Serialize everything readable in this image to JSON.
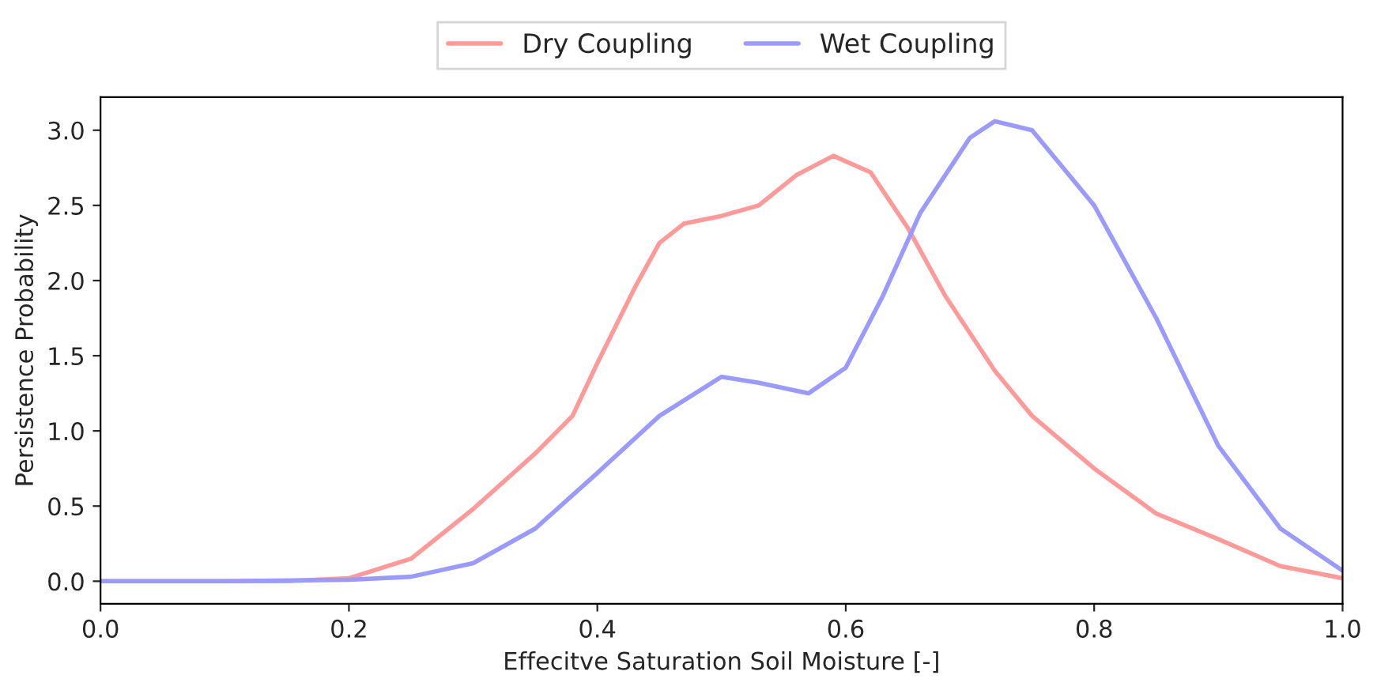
{
  "chart_data": {
    "type": "line",
    "xlabel": "Effecitve Saturation Soil Moisture [-]",
    "ylabel": "Persistence Probability",
    "xlim": [
      0,
      1.0
    ],
    "ylim": [
      -0.15,
      3.22
    ],
    "xticks": [
      {
        "value": 0,
        "label": "0.0"
      },
      0.2,
      0.4,
      0.6,
      0.8,
      {
        "value": 1.0,
        "label": "1.0"
      }
    ],
    "yticks": [
      {
        "value": 0,
        "label": "0.0"
      },
      0.5,
      {
        "value": 1.0,
        "label": "1.0"
      },
      1.5,
      {
        "value": 2.0,
        "label": "2.0"
      },
      2.5,
      {
        "value": 3.0,
        "label": "3.0"
      }
    ],
    "legend": "top",
    "grid": false,
    "marker": "none",
    "line_style": "solid",
    "series": [
      {
        "name": "Dry Coupling",
        "color": "#ff9a9a",
        "x": [
          0,
          0.1,
          0.15,
          0.2,
          0.25,
          0.3,
          0.35,
          0.38,
          0.4,
          0.43,
          0.45,
          0.47,
          0.5,
          0.53,
          0.56,
          0.59,
          0.62,
          0.65,
          0.68,
          0.72,
          0.75,
          0.8,
          0.85,
          0.9,
          0.95,
          1.0
        ],
        "values": [
          0,
          0,
          0,
          0.02,
          0.15,
          0.48,
          0.85,
          1.1,
          1.45,
          1.95,
          2.25,
          2.38,
          2.43,
          2.5,
          2.7,
          2.83,
          2.72,
          2.35,
          1.9,
          1.4,
          1.1,
          0.75,
          0.45,
          0.28,
          0.1,
          0.02
        ]
      },
      {
        "name": "Wet Coupling",
        "color": "#9a9aff",
        "x": [
          0,
          0.1,
          0.2,
          0.25,
          0.3,
          0.35,
          0.4,
          0.45,
          0.5,
          0.53,
          0.57,
          0.6,
          0.63,
          0.66,
          0.7,
          0.72,
          0.75,
          0.8,
          0.85,
          0.9,
          0.95,
          1.0
        ],
        "values": [
          0,
          0,
          0.01,
          0.03,
          0.12,
          0.35,
          0.72,
          1.1,
          1.36,
          1.32,
          1.25,
          1.42,
          1.9,
          2.45,
          2.95,
          3.06,
          3.0,
          2.5,
          1.75,
          0.9,
          0.35,
          0.07
        ]
      }
    ]
  }
}
